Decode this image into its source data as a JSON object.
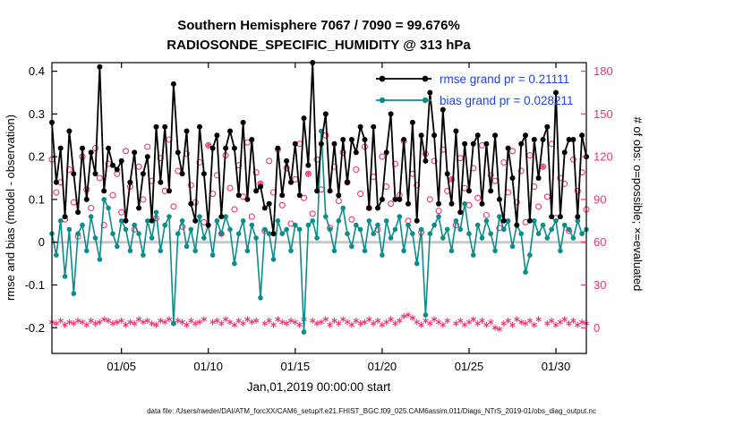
{
  "theme": {
    "background": "#ffffff",
    "axis_color": "#000000",
    "zero_line_color": "#c9c9c9",
    "legend_text_color": "#2244dd"
  },
  "title": {
    "line1": "Southern Hemisphere 7067 / 7090 = 99.676%",
    "line2": "RADIOSONDE_SPECIFIC_HUMIDITY @ 313 hPa"
  },
  "legend": {
    "entries": [
      {
        "label": "rmse grand pr = 0.21111",
        "color": "#000000"
      },
      {
        "label": "bias grand pr = 0.028211",
        "color": "#0d8c8c"
      }
    ]
  },
  "footer": "data file: /Users/raeder/DAI/ATM_forcXX/CAM6_setup/f.e21.FHIST_BGC.f09_025.CAM6assim.011/Diags_NTrS_2019-01/obs_diag_output.nc",
  "chart_data": {
    "type": "line",
    "title": "Southern Hemisphere 7067 / 7090 = 99.676% — RADIOSONDE_SPECIFIC_HUMIDITY @ 313 hPa",
    "xlabel": "Jan,01,2019 00:00:00 start",
    "ylabel_left": "rmse and bias (model - observation)",
    "ylabel_right": "# of obs: o=possible; ×=evaluated",
    "x_start": "2019-01-01 00:00",
    "x_step_days": 0.25,
    "x_max_day": 30.75,
    "x_ticks": [
      {
        "day": 4,
        "label": "01/05"
      },
      {
        "day": 9,
        "label": "01/10"
      },
      {
        "day": 14,
        "label": "01/15"
      },
      {
        "day": 19,
        "label": "01/20"
      },
      {
        "day": 24,
        "label": "01/25"
      },
      {
        "day": 29,
        "label": "01/30"
      }
    ],
    "ylim_left": [
      -0.26,
      0.42
    ],
    "yticks_left": [
      -0.2,
      -0.1,
      0,
      0.1,
      0.2,
      0.3,
      0.4
    ],
    "yticks_right": [
      0,
      30,
      60,
      90,
      120,
      150,
      180
    ],
    "right_axis_map": "count = (left_value + 0.2) * 300",
    "grid": false,
    "legend_position": "top-right-inside",
    "colors": {
      "rmse": "#000000",
      "bias": "#0d8c8c",
      "obs": "#ee3377"
    },
    "series": [
      {
        "name": "rmse",
        "axis": "left",
        "marker": "filled-circle",
        "color": "#000000",
        "values": [
          0.28,
          0.14,
          0.22,
          0.06,
          0.26,
          0.16,
          0.07,
          0.22,
          0.1,
          0.21,
          0.16,
          0.41,
          0.12,
          0.22,
          0.18,
          0.17,
          0.19,
          0.05,
          0.14,
          0.21,
          0.08,
          0.16,
          0.2,
          0.05,
          0.27,
          0.14,
          0.27,
          0.12,
          0.37,
          0.21,
          0.16,
          0.26,
          0.09,
          0.05,
          0.27,
          0.16,
          0.04,
          0.22,
          0.25,
          0.06,
          0.22,
          0.26,
          0.22,
          0.11,
          0.28,
          0.1,
          0.24,
          0.12,
          0.13,
          0.08,
          0.09,
          0.02,
          0.22,
          0.11,
          0.19,
          0.14,
          0.23,
          0.11,
          0.29,
          0.18,
          0.42,
          0.12,
          0.23,
          0.3,
          0.12,
          0.23,
          0.11,
          0.24,
          0.14,
          0.24,
          0.21,
          0.27,
          0.24,
          0.08,
          0.27,
          0.08,
          0.1,
          0.21,
          0.3,
          0.1,
          0.1,
          0.24,
          0.09,
          0.28,
          0.05,
          0.25,
          0.19,
          0.35,
          0.25,
          0.09,
          0.31,
          0.16,
          0.09,
          0.26,
          0.07,
          0.23,
          0.12,
          0.23,
          0.25,
          0.09,
          0.23,
          0.12,
          0.25,
          0.1,
          0.05,
          0.22,
          0.15,
          0.04,
          0.23,
          0.25,
          0.05,
          0.24,
          0.15,
          0.24,
          0.27,
          0.06,
          0.35,
          0.06,
          0.21,
          0.24,
          0.24,
          0.06,
          0.25,
          0.2
        ]
      },
      {
        "name": "bias",
        "axis": "left",
        "marker": "filled-circle",
        "color": "#0d8c8c",
        "values": [
          0.02,
          -0.03,
          0.05,
          -0.08,
          0.03,
          -0.12,
          0.02,
          0.04,
          -0.02,
          0.06,
          0.01,
          -0.04,
          0.1,
          0.08,
          0.02,
          -0.01,
          0.05,
          0.03,
          -0.02,
          0.04,
          0.02,
          -0.03,
          0.05,
          0.01,
          0.07,
          -0.02,
          0.04,
          0.06,
          -0.19,
          0.02,
          0.05,
          -0.01,
          0.03,
          -0.02,
          0.06,
          0.01,
          0.04,
          -0.03,
          0.05,
          0.02,
          0.06,
          0.03,
          -0.05,
          0.02,
          0.05,
          -0.02,
          0.04,
          0.01,
          -0.13,
          0.03,
          0.02,
          -0.04,
          0.05,
          0.02,
          0.03,
          -0.02,
          0.04,
          0.03,
          -0.21,
          0.04,
          0.05,
          0.01,
          0.26,
          0.06,
          0.03,
          -0.02,
          0.05,
          0.08,
          0.02,
          -0.01,
          0.04,
          0.03,
          -0.02,
          0.05,
          0.02,
          0.04,
          -0.03,
          0.05,
          0.01,
          0.03,
          0.06,
          -0.02,
          0.04,
          0.02,
          -0.05,
          0.03,
          -0.17,
          0.02,
          0.04,
          0.06,
          0.01,
          0.03,
          -0.02,
          0.05,
          0.03,
          0.09,
          0.02,
          -0.03,
          0.04,
          0.01,
          0.05,
          0.02,
          -0.02,
          0.06,
          0.03,
          0.05,
          -0.01,
          0.04,
          0.02,
          -0.07,
          -0.03,
          0.05,
          0.02,
          0.04,
          0.01,
          0.03,
          0.05,
          -0.02,
          0.04,
          0.03,
          0.01,
          0.05,
          0.02,
          0.03
        ]
      },
      {
        "name": "possible_obs",
        "axis": "right",
        "marker": "circle",
        "color": "#ee3377",
        "values": [
          118,
          95,
          102,
          76,
          111,
          88,
          64,
          120,
          97,
          84,
          126,
          105,
          72,
          115,
          93,
          108,
          81,
          124,
          99,
          69,
          113,
          90,
          127,
          103,
          77,
          119,
          96,
          132,
          85,
          110,
          71,
          122,
          100,
          88,
          116,
          74,
          128,
          94,
          107,
          66,
          121,
          98,
          83,
          114,
          92,
          130,
          78,
          109,
          101,
          68,
          117,
          95,
          125,
          86,
          112,
          73,
          104,
          129,
          91,
          108,
          80,
          118,
          97,
          135,
          70,
          113,
          89,
          123,
          102,
          76,
          111,
          94,
          127,
          84,
          106,
          69,
          120,
          99,
          87,
          115,
          93,
          131,
          75,
          108,
          100,
          67,
          122,
          90,
          117,
          82,
          125,
          96,
          104,
          72,
          119,
          98,
          86,
          112,
          91,
          128,
          79,
          107,
          103,
          70,
          116,
          95,
          124,
          88,
          110,
          74,
          121,
          99,
          85,
          113,
          92,
          129,
          77,
          105,
          101,
          68,
          118,
          96,
          109,
          83
        ]
      },
      {
        "name": "evaluated_obs",
        "axis": "right",
        "marker": "asterisk",
        "color": "#ee3377",
        "values": [
          4,
          3,
          5,
          2,
          4,
          3,
          5,
          4,
          2,
          5,
          3,
          4,
          6,
          5,
          3,
          4,
          5,
          2,
          4,
          3,
          6,
          4,
          5,
          3,
          2,
          5,
          4,
          6,
          3,
          5,
          4,
          2,
          5,
          3,
          4,
          6,
          128,
          4,
          5,
          3,
          6,
          4,
          2,
          5,
          3,
          6,
          4,
          5,
          101,
          3,
          5,
          2,
          6,
          4,
          3,
          5,
          4,
          2,
          6,
          108,
          5,
          3,
          4,
          6,
          2,
          5,
          3,
          6,
          4,
          2,
          5,
          3,
          4,
          6,
          3,
          5,
          2,
          4,
          6,
          3,
          5,
          8,
          9,
          7,
          4,
          2,
          5,
          3,
          6,
          4,
          2,
          5,
          104,
          3,
          5,
          2,
          4,
          6,
          3,
          5,
          2,
          4,
          0,
          -1,
          3,
          5,
          2,
          6,
          4,
          3,
          5,
          2,
          6,
          113,
          3,
          5,
          2,
          4,
          6,
          3,
          5,
          2,
          4,
          3
        ]
      }
    ]
  }
}
